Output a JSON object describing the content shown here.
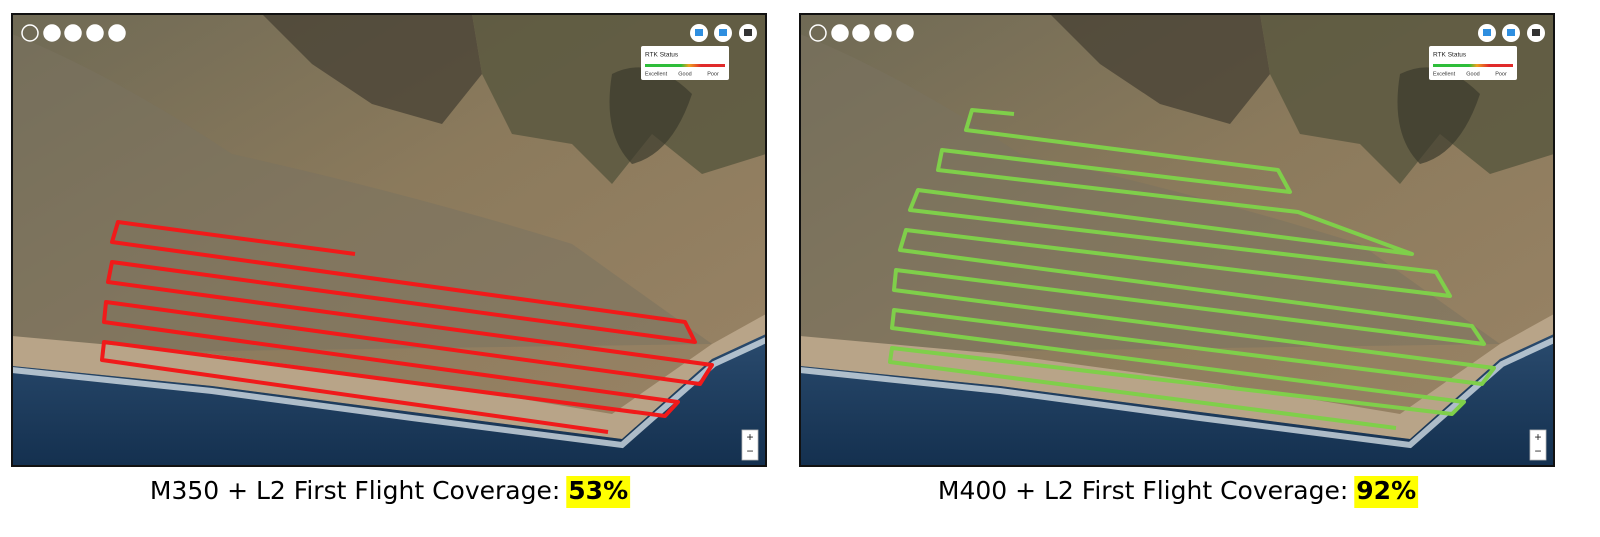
{
  "panels": [
    {
      "rtk": {
        "title": "RTK Status",
        "labels": [
          "Excellent",
          "Good",
          "Poor"
        ]
      },
      "zoom": [
        "+",
        "−"
      ],
      "caption": {
        "text": "M350 + L2 First Flight Coverage:",
        "value": "53%"
      }
    },
    {
      "rtk": {
        "title": "RTK Status",
        "labels": [
          "Excellent",
          "Good",
          "Poor"
        ]
      },
      "zoom": [
        "+",
        "−"
      ],
      "caption": {
        "text": "M400 + L2 First Flight Coverage:",
        "value": "92%"
      }
    }
  ]
}
